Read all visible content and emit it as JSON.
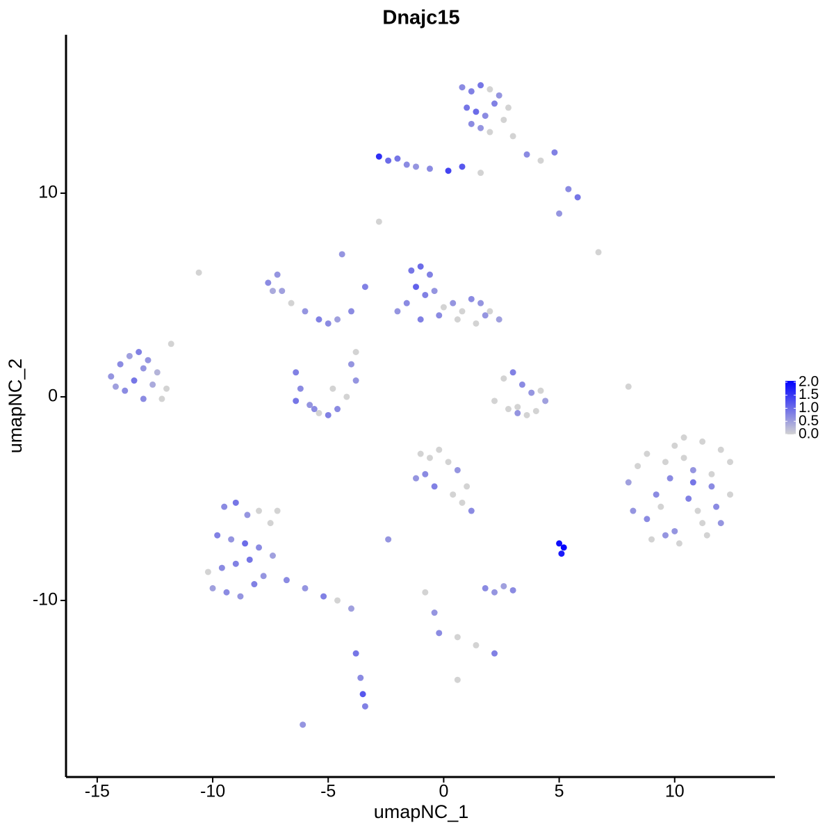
{
  "chart_data": {
    "type": "scatter",
    "title": "Dnajc15",
    "xlabel": "umapNC_1",
    "ylabel": "umapNC_2",
    "xlim": [
      -16.35,
      14.34
    ],
    "ylim": [
      -18.67,
      17.78
    ],
    "xticks": [
      -15,
      -10,
      -5,
      0,
      5,
      10
    ],
    "yticks": [
      -10,
      0,
      10
    ],
    "low_color": "#d3d3d3",
    "high_color": "#0000ff",
    "colorlim": [
      0,
      2.05
    ],
    "colorticks": [
      {
        "value": 0,
        "label": "0.0"
      },
      {
        "value": 0.5,
        "label": "0.5"
      },
      {
        "value": 1,
        "label": "1.0"
      },
      {
        "value": 1.5,
        "label": "1.5"
      },
      {
        "value": 2,
        "label": "2.0"
      }
    ],
    "x": [
      -14.4,
      -14.0,
      -13.6,
      -13.2,
      -12.8,
      -12.4,
      -12.0,
      -13.8,
      -13.4,
      -13.0,
      -12.6,
      -14.2,
      -13.0,
      -12.2,
      -11.8,
      -9.5,
      -9.0,
      -8.5,
      -8.0,
      -7.5,
      -9.8,
      -9.2,
      -8.6,
      -8.0,
      -7.4,
      -10.2,
      -9.6,
      -9.0,
      -8.4,
      -7.8,
      -10.0,
      -9.4,
      -8.8,
      -8.2,
      -6.8,
      -6.0,
      -5.2,
      -4.6,
      -4.0,
      -7.2,
      0.8,
      1.2,
      1.6,
      2.0,
      2.4,
      2.8,
      1.0,
      1.4,
      1.8,
      2.2,
      2.6,
      1.2,
      1.6,
      2.0,
      3.0,
      -2.8,
      -2.4,
      -2.0,
      -1.6,
      -1.2,
      -0.6,
      0.2,
      0.8,
      1.6,
      3.6,
      4.2,
      4.8,
      5.4,
      5.8,
      5.0,
      -7.6,
      -7.2,
      -7.0,
      -6.6,
      -6.0,
      -5.4,
      -5.0,
      -4.6,
      -4.0,
      -3.4,
      -7.4,
      -6.4,
      -6.2,
      -5.8,
      -5.4,
      -5.0,
      -4.6,
      -4.2,
      -3.8,
      -6.4,
      -5.6,
      -4.8,
      -4.0,
      -3.8,
      -4.4,
      -1.4,
      -1.0,
      -0.6,
      -1.2,
      -0.8,
      -0.4,
      -1.6,
      0.0,
      0.4,
      0.8,
      1.2,
      1.6,
      2.0,
      2.4,
      1.4,
      0.6,
      -0.2,
      -1.0,
      -2.0,
      1.8,
      2.2,
      2.8,
      3.2,
      3.6,
      4.0,
      4.4,
      3.0,
      3.4,
      2.6,
      3.8,
      3.2,
      4.2,
      8.0,
      8.4,
      8.8,
      9.2,
      9.6,
      10.0,
      10.4,
      10.8,
      11.2,
      11.6,
      12.0,
      12.4,
      8.2,
      8.8,
      9.4,
      10.0,
      10.6,
      11.2,
      11.8,
      12.4,
      9.0,
      9.6,
      10.2,
      10.8,
      11.4,
      12.0,
      10.4,
      11.0,
      9.8,
      11.6,
      -1.0,
      -0.6,
      -0.2,
      0.2,
      0.6,
      1.0,
      -0.8,
      -0.4,
      0.4,
      0.8,
      -1.2,
      1.2,
      1.8,
      2.2,
      2.6,
      3.0,
      -0.8,
      -0.4,
      -0.2,
      0.6,
      1.4,
      2.2,
      -3.6,
      -3.5,
      -3.4,
      -3.8,
      5.0,
      5.2,
      5.1,
      -2.8,
      -2.4,
      -10.6,
      8.0,
      6.7,
      -6.1,
      0.6
    ],
    "y": [
      1.0,
      1.6,
      2.0,
      2.2,
      1.8,
      1.2,
      0.4,
      0.3,
      0.8,
      1.4,
      0.6,
      0.5,
      -0.1,
      -0.1,
      2.6,
      -5.4,
      -5.2,
      -5.8,
      -5.6,
      -6.2,
      -6.8,
      -7.0,
      -7.2,
      -7.4,
      -7.8,
      -8.6,
      -8.4,
      -8.2,
      -8.0,
      -8.8,
      -9.4,
      -9.6,
      -9.8,
      -9.2,
      -9.0,
      -9.4,
      -9.8,
      -10.0,
      -10.4,
      -5.6,
      15.2,
      15.0,
      15.3,
      15.1,
      14.8,
      14.2,
      14.2,
      14.0,
      13.8,
      14.4,
      13.6,
      13.4,
      13.2,
      13.0,
      12.8,
      11.8,
      11.6,
      11.7,
      11.4,
      11.3,
      11.2,
      11.1,
      11.3,
      11.0,
      11.9,
      11.6,
      12.0,
      10.2,
      9.8,
      9.0,
      5.6,
      6.0,
      5.2,
      4.6,
      4.2,
      3.8,
      3.6,
      3.8,
      4.2,
      5.4,
      5.2,
      1.2,
      0.4,
      -0.4,
      -0.8,
      -0.9,
      -0.6,
      0.0,
      0.8,
      -0.2,
      -0.6,
      0.4,
      1.6,
      2.2,
      7.0,
      6.2,
      6.4,
      6.0,
      5.4,
      5.0,
      5.2,
      4.6,
      4.4,
      4.6,
      4.2,
      4.8,
      4.6,
      4.2,
      3.8,
      3.6,
      3.8,
      4.0,
      3.8,
      4.2,
      4.0,
      -0.2,
      -0.6,
      -0.8,
      -0.9,
      -0.7,
      -0.2,
      1.2,
      0.6,
      0.9,
      0.2,
      -0.5,
      0.3,
      -4.2,
      -3.4,
      -2.8,
      -4.8,
      -3.2,
      -2.4,
      -2.0,
      -3.6,
      -2.2,
      -4.4,
      -2.6,
      -3.2,
      -5.6,
      -6.0,
      -5.4,
      -6.6,
      -5.0,
      -6.2,
      -5.4,
      -4.8,
      -7.0,
      -6.8,
      -7.2,
      -4.2,
      -6.8,
      -6.2,
      -3.0,
      -5.6,
      -4.0,
      -3.8,
      -2.8,
      -3.0,
      -2.6,
      -3.2,
      -3.6,
      -4.4,
      -3.8,
      -4.4,
      -4.8,
      -5.2,
      -4.0,
      -5.6,
      -9.4,
      -9.6,
      -9.3,
      -9.5,
      -9.6,
      -10.6,
      -11.6,
      -11.8,
      -12.2,
      -12.6,
      -13.8,
      -14.6,
      -15.2,
      -12.6,
      -7.2,
      -7.4,
      -7.7,
      8.6,
      -7.0,
      6.1,
      0.5,
      7.1,
      -16.1,
      -13.9
    ],
    "values": [
      0.6,
      0.7,
      0.5,
      0.8,
      0.6,
      0.3,
      0.0,
      0.7,
      0.9,
      0.6,
      0.4,
      0.5,
      0.7,
      0.0,
      0.0,
      0.7,
      0.9,
      0.6,
      0.0,
      0.0,
      0.8,
      0.6,
      1.0,
      0.7,
      0.5,
      0.0,
      0.7,
      0.8,
      0.9,
      0.6,
      0.5,
      0.7,
      0.6,
      0.8,
      0.7,
      0.6,
      0.8,
      0.0,
      0.5,
      0.0,
      0.7,
      0.8,
      0.9,
      0.0,
      0.6,
      0.0,
      0.9,
      1.0,
      0.7,
      0.8,
      0.0,
      0.7,
      0.6,
      0.0,
      0.0,
      1.6,
      1.0,
      0.9,
      0.7,
      0.6,
      0.7,
      1.4,
      1.2,
      0.0,
      0.7,
      0.0,
      0.8,
      0.7,
      0.9,
      0.6,
      0.7,
      0.6,
      0.5,
      0.0,
      0.6,
      0.8,
      0.7,
      0.5,
      0.7,
      0.8,
      0.4,
      0.8,
      0.7,
      0.6,
      0.0,
      0.8,
      0.7,
      0.0,
      0.6,
      0.9,
      0.7,
      0.0,
      0.6,
      0.0,
      0.6,
      0.9,
      1.0,
      0.8,
      1.1,
      0.8,
      0.6,
      0.7,
      0.0,
      0.6,
      0.0,
      0.7,
      0.6,
      0.0,
      0.5,
      0.0,
      0.0,
      0.7,
      0.8,
      0.6,
      0.6,
      0.0,
      0.0,
      0.6,
      0.0,
      0.0,
      0.5,
      0.8,
      0.7,
      0.0,
      0.6,
      0.0,
      0.0,
      0.5,
      0.0,
      0.0,
      0.7,
      0.0,
      0.0,
      0.0,
      0.6,
      0.0,
      0.7,
      0.0,
      0.0,
      0.6,
      0.7,
      0.0,
      0.6,
      0.8,
      0.0,
      0.7,
      0.0,
      0.0,
      0.6,
      0.0,
      0.9,
      0.0,
      0.6,
      0.0,
      0.0,
      0.7,
      0.0,
      0.0,
      0.0,
      0.0,
      0.0,
      0.6,
      0.0,
      0.7,
      0.8,
      0.0,
      0.0,
      0.6,
      0.7,
      0.7,
      0.6,
      0.5,
      0.7,
      0.0,
      0.6,
      0.7,
      0.0,
      0.0,
      0.8,
      0.7,
      1.2,
      0.8,
      0.9,
      1.9,
      2.0,
      1.8,
      0.0,
      0.6,
      0.0,
      0.0,
      0.0,
      0.6,
      0.0
    ]
  }
}
